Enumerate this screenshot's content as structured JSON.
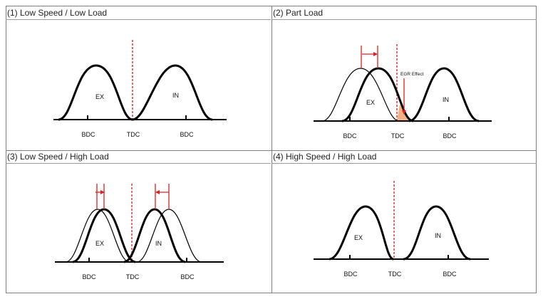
{
  "panels": [
    {
      "title": "(1) Low Speed / Low Load",
      "ex": "EX",
      "in": "IN",
      "bdc_left": "BDC",
      "tdc": "TDC",
      "bdc_right": "BDC"
    },
    {
      "title": "(2) Part Load",
      "ex": "EX",
      "in": "IN",
      "bdc_left": "BDC",
      "tdc": "TDC",
      "bdc_right": "BDC",
      "annotation": "EGR Effect"
    },
    {
      "title": "(3) Low Speed / High Load",
      "ex": "EX",
      "in": "IN",
      "bdc_left": "BDC",
      "tdc": "TDC",
      "bdc_right": "BDC"
    },
    {
      "title": "(4) High Speed / High Load",
      "ex": "EX",
      "in": "IN",
      "bdc_left": "BDC",
      "tdc": "TDC",
      "bdc_right": "BDC"
    }
  ],
  "colors": {
    "curve": "#000000",
    "tdc_line": "#d93030",
    "arrow": "#e02020",
    "overlap_fill": "#f2b283",
    "border": "#7f7f7f"
  }
}
